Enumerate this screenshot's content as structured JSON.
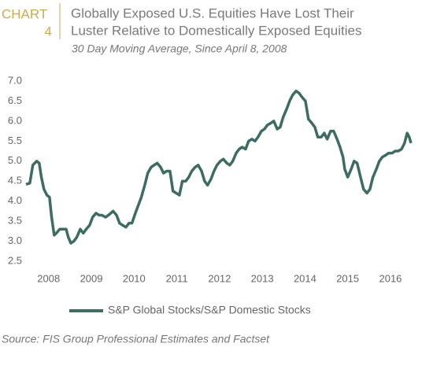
{
  "chart_data": {
    "type": "line",
    "chart_label": "CHART",
    "chart_number": "4",
    "title": [
      "Globally Exposed U.S. Equities Have Lost Their",
      "Luster Relative to Domestically Exposed Equities"
    ],
    "subtitle": "30 Day Moving Average, Since April 8, 2008",
    "source": "Source: FIS Group Professional Estimates and Factset",
    "x": [
      2007.97,
      2008.06,
      2008.13,
      2008.22,
      2008.28,
      2008.33,
      2008.39,
      2008.46,
      2008.52,
      2008.57,
      2008.63,
      2008.68,
      2008.76,
      2008.83,
      2008.91,
      2008.96,
      2009.02,
      2009.09,
      2009.16,
      2009.24,
      2009.31,
      2009.38,
      2009.46,
      2009.53,
      2009.61,
      2009.68,
      2009.75,
      2009.83,
      2009.9,
      2010.01,
      2010.09,
      2010.16,
      2010.23,
      2010.31,
      2010.38,
      2010.45,
      2010.53,
      2010.6,
      2010.67,
      2010.75,
      2010.82,
      2010.9,
      2010.97,
      2011.04,
      2011.12,
      2011.19,
      2011.26,
      2011.34,
      2011.41,
      2011.49,
      2011.56,
      2011.63,
      2011.71,
      2011.78,
      2011.85,
      2011.93,
      2012.0,
      2012.08,
      2012.15,
      2012.22,
      2012.3,
      2012.37,
      2012.44,
      2012.52,
      2012.59,
      2012.67,
      2012.74,
      2012.81,
      2012.89,
      2012.96,
      2013.03,
      2013.11,
      2013.18,
      2013.26,
      2013.33,
      2013.4,
      2013.48,
      2013.55,
      2013.62,
      2013.7,
      2013.77,
      2013.85,
      2013.92,
      2013.99,
      2014.07,
      2014.14,
      2014.21,
      2014.29,
      2014.36,
      2014.43,
      2014.51,
      2014.58,
      2014.66,
      2014.73,
      2014.8,
      2014.88,
      2014.95,
      2015.02,
      2015.1,
      2015.17,
      2015.25,
      2015.32,
      2015.39,
      2015.43,
      2015.5,
      2015.58,
      2015.65,
      2015.72,
      2015.8,
      2015.87,
      2015.95,
      2016.02,
      2016.09,
      2016.17,
      2016.24,
      2016.31,
      2016.39,
      2016.46,
      2016.54,
      2016.61,
      2016.68,
      2016.76,
      2016.83,
      2016.89,
      2016.94,
      2016.98
    ],
    "series": [
      {
        "name": "S&P Global Stocks/S&P Domestic Stocks",
        "color": "#3e6b62",
        "values": [
          4.42,
          4.45,
          4.9,
          5.0,
          4.95,
          4.6,
          4.3,
          4.15,
          4.1,
          3.6,
          3.15,
          3.2,
          3.3,
          3.3,
          3.3,
          3.1,
          2.95,
          3.0,
          3.1,
          3.3,
          3.2,
          3.3,
          3.4,
          3.6,
          3.7,
          3.65,
          3.65,
          3.6,
          3.65,
          3.75,
          3.65,
          3.45,
          3.4,
          3.35,
          3.45,
          3.45,
          3.7,
          3.9,
          4.1,
          4.4,
          4.7,
          4.85,
          4.9,
          4.95,
          4.85,
          4.7,
          4.75,
          4.75,
          4.25,
          4.2,
          4.15,
          4.5,
          4.5,
          4.6,
          4.75,
          4.85,
          4.9,
          4.75,
          4.5,
          4.4,
          4.55,
          4.75,
          4.9,
          5.0,
          5.05,
          4.95,
          4.9,
          5.0,
          5.2,
          5.3,
          5.35,
          5.3,
          5.5,
          5.55,
          5.5,
          5.6,
          5.75,
          5.8,
          5.9,
          5.95,
          6.0,
          5.8,
          5.85,
          6.1,
          6.3,
          6.5,
          6.65,
          6.75,
          6.7,
          6.6,
          6.5,
          6.05,
          5.95,
          5.85,
          5.6,
          5.6,
          5.7,
          5.55,
          5.75,
          5.75,
          5.55,
          5.35,
          5.1,
          4.8,
          4.6,
          4.8,
          5.0,
          4.95,
          4.6,
          4.3,
          4.2,
          4.3,
          4.6,
          4.8,
          5.0,
          5.1,
          5.15,
          5.2,
          5.2,
          5.25,
          5.25,
          5.3,
          5.45,
          5.7,
          5.6,
          5.45
        ]
      }
    ],
    "xlim": [
      2007.97,
      2016.98
    ],
    "xticks": [
      {
        "value": 2008.5,
        "label": "2008"
      },
      {
        "value": 2009.5,
        "label": "2009"
      },
      {
        "value": 2010.5,
        "label": "2010"
      },
      {
        "value": 2011.5,
        "label": "2011"
      },
      {
        "value": 2012.5,
        "label": "2012"
      },
      {
        "value": 2013.5,
        "label": "2013"
      },
      {
        "value": 2014.5,
        "label": "2014"
      },
      {
        "value": 2015.5,
        "label": "2015"
      },
      {
        "value": 2016.5,
        "label": "2016"
      }
    ],
    "ylim": [
      2.5,
      7.0
    ],
    "yticks": [
      2.5,
      {
        "value": 3,
        "label": "3.0"
      },
      3.5,
      {
        "value": 4,
        "label": "4.0"
      },
      4.5,
      {
        "value": 5,
        "label": "5.0"
      },
      5.5,
      {
        "value": 6,
        "label": "6.0"
      },
      6.5,
      {
        "value": 7,
        "label": "7.0"
      }
    ],
    "grid": false
  }
}
